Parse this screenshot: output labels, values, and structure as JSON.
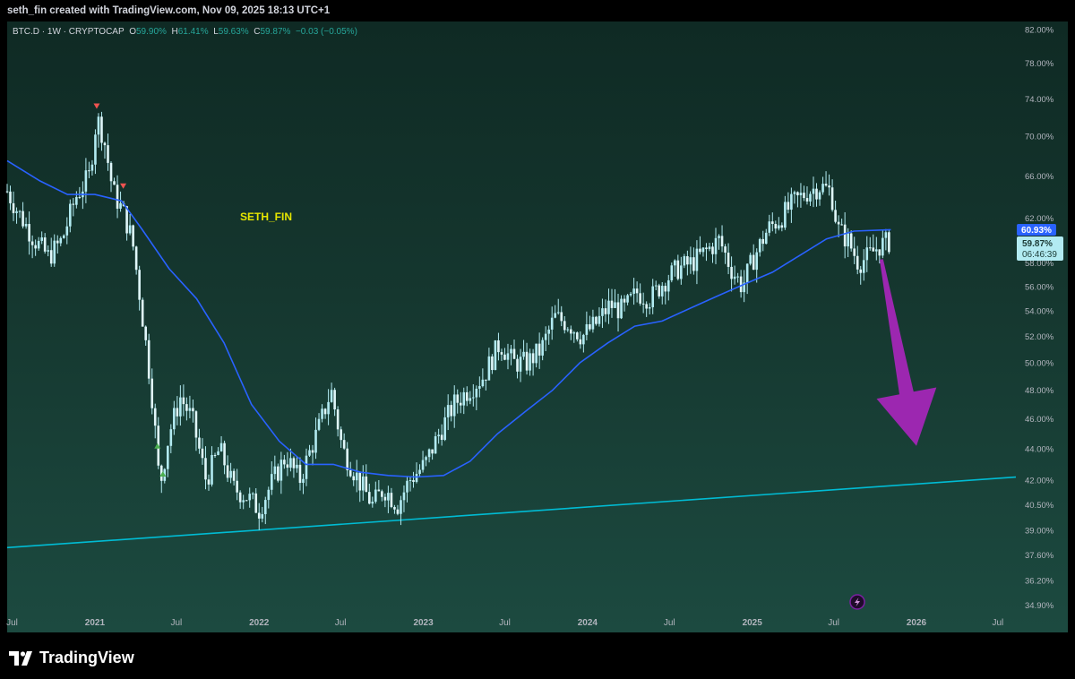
{
  "header": {
    "credit": "seth_fin created with TradingView.com, Nov 09, 2025 18:13 UTC+1"
  },
  "symbol": {
    "name": "BTC.D · 1W · CRYPTOCAP",
    "o_label": "O",
    "o": "59.90%",
    "h_label": "H",
    "h": "61.41%",
    "l_label": "L",
    "l": "59.63%",
    "c_label": "C",
    "c": "59.87%",
    "change": "−0.03 (−0.05%)"
  },
  "watermark": "SETH_FIN",
  "price_tags": {
    "ma": "60.93%",
    "last": "59.87%",
    "countdown": "06:46:39"
  },
  "footer": {
    "brand": "TradingView"
  },
  "colors": {
    "candle": "#b2ebf2",
    "ma_line": "#2962ff",
    "trendline": "#00bcd4",
    "arrow": "#9c27b0",
    "marker_down": "#ef5350",
    "marker_up": "#4caf50",
    "watermark": "#e6e600"
  },
  "chart_data": {
    "type": "candlestick",
    "title": "",
    "scale": "log",
    "ylim": [
      34.5,
      83.0
    ],
    "y_ticks": [
      {
        "v": 82.0,
        "label": "82.00%"
      },
      {
        "v": 78.0,
        "label": "78.00%"
      },
      {
        "v": 74.0,
        "label": "74.00%"
      },
      {
        "v": 70.0,
        "label": "70.00%"
      },
      {
        "v": 66.0,
        "label": "66.00%"
      },
      {
        "v": 62.0,
        "label": "62.00%"
      },
      {
        "v": 58.0,
        "label": "58.00%"
      },
      {
        "v": 56.0,
        "label": "56.00%"
      },
      {
        "v": 54.0,
        "label": "54.00%"
      },
      {
        "v": 52.0,
        "label": "52.00%"
      },
      {
        "v": 50.0,
        "label": "50.00%"
      },
      {
        "v": 48.0,
        "label": "48.00%"
      },
      {
        "v": 46.0,
        "label": "46.00%"
      },
      {
        "v": 44.0,
        "label": "44.00%"
      },
      {
        "v": 42.0,
        "label": "42.00%"
      },
      {
        "v": 40.5,
        "label": "40.50%"
      },
      {
        "v": 39.0,
        "label": "39.00%"
      },
      {
        "v": 37.6,
        "label": "37.60%"
      },
      {
        "v": 36.2,
        "label": "36.20%"
      },
      {
        "v": 34.9,
        "label": "34.90%"
      }
    ],
    "x_range": [
      "2020-06-20",
      "2026-08-10"
    ],
    "x_ticks": [
      {
        "date": "2020-07-01",
        "label": "Jul",
        "bold": false
      },
      {
        "date": "2021-01-01",
        "label": "2021",
        "bold": true
      },
      {
        "date": "2021-07-01",
        "label": "Jul",
        "bold": false
      },
      {
        "date": "2022-01-01",
        "label": "2022",
        "bold": true
      },
      {
        "date": "2022-07-01",
        "label": "Jul",
        "bold": false
      },
      {
        "date": "2023-01-01",
        "label": "2023",
        "bold": true
      },
      {
        "date": "2023-07-01",
        "label": "Jul",
        "bold": false
      },
      {
        "date": "2024-01-01",
        "label": "2024",
        "bold": true
      },
      {
        "date": "2024-07-01",
        "label": "Jul",
        "bold": false
      },
      {
        "date": "2025-01-01",
        "label": "2025",
        "bold": true
      },
      {
        "date": "2025-07-01",
        "label": "Jul",
        "bold": false
      },
      {
        "date": "2026-01-01",
        "label": "2026",
        "bold": true
      },
      {
        "date": "2026-07-01",
        "label": "Jul",
        "bold": false
      }
    ],
    "price_path": [
      [
        "2020-06-20",
        64.5
      ],
      [
        "2020-07-15",
        62.5
      ],
      [
        "2020-08-20",
        60.0
      ],
      [
        "2020-09-20",
        58.5
      ],
      [
        "2020-10-20",
        60.0
      ],
      [
        "2020-11-20",
        64.0
      ],
      [
        "2020-12-20",
        66.0
      ],
      [
        "2021-01-05",
        72.0
      ],
      [
        "2021-01-20",
        70.0
      ],
      [
        "2021-02-10",
        64.5
      ],
      [
        "2021-03-05",
        62.5
      ],
      [
        "2021-03-25",
        60.0
      ],
      [
        "2021-04-15",
        54.0
      ],
      [
        "2021-05-10",
        47.0
      ],
      [
        "2021-05-25",
        41.5
      ],
      [
        "2021-06-15",
        45.0
      ],
      [
        "2021-07-10",
        47.5
      ],
      [
        "2021-08-05",
        46.0
      ],
      [
        "2021-09-05",
        42.0
      ],
      [
        "2021-10-05",
        44.0
      ],
      [
        "2021-11-05",
        41.5
      ],
      [
        "2021-12-05",
        41.0
      ],
      [
        "2022-01-01",
        40.2
      ],
      [
        "2022-02-01",
        42.0
      ],
      [
        "2022-03-01",
        43.5
      ],
      [
        "2022-04-01",
        42.0
      ],
      [
        "2022-05-15",
        45.5
      ],
      [
        "2022-06-10",
        48.0
      ],
      [
        "2022-07-05",
        44.0
      ],
      [
        "2022-08-10",
        42.0
      ],
      [
        "2022-09-10",
        40.5
      ],
      [
        "2022-10-05",
        41.5
      ],
      [
        "2022-11-05",
        40.5
      ],
      [
        "2022-12-01",
        42.0
      ],
      [
        "2023-01-05",
        43.0
      ],
      [
        "2023-02-05",
        45.0
      ],
      [
        "2023-03-10",
        47.0
      ],
      [
        "2023-04-10",
        48.0
      ],
      [
        "2023-05-15",
        49.0
      ],
      [
        "2023-06-20",
        51.5
      ],
      [
        "2023-07-20",
        50.0
      ],
      [
        "2023-08-20",
        50.0
      ],
      [
        "2023-09-20",
        51.0
      ],
      [
        "2023-10-20",
        53.5
      ],
      [
        "2023-11-20",
        53.0
      ],
      [
        "2023-12-20",
        52.0
      ],
      [
        "2024-01-20",
        53.0
      ],
      [
        "2024-02-20",
        54.5
      ],
      [
        "2024-03-20",
        54.0
      ],
      [
        "2024-04-20",
        55.5
      ],
      [
        "2024-05-20",
        55.0
      ],
      [
        "2024-06-20",
        56.5
      ],
      [
        "2024-07-20",
        57.5
      ],
      [
        "2024-08-20",
        58.0
      ],
      [
        "2024-09-20",
        59.0
      ],
      [
        "2024-10-20",
        60.0
      ],
      [
        "2024-11-15",
        57.5
      ],
      [
        "2024-12-10",
        56.0
      ],
      [
        "2025-01-05",
        58.5
      ],
      [
        "2025-02-05",
        61.0
      ],
      [
        "2025-03-05",
        62.0
      ],
      [
        "2025-04-05",
        63.5
      ],
      [
        "2025-05-05",
        64.5
      ],
      [
        "2025-06-01",
        65.0
      ],
      [
        "2025-06-25",
        64.5
      ],
      [
        "2025-07-10",
        61.0
      ],
      [
        "2025-08-01",
        60.0
      ],
      [
        "2025-08-25",
        58.0
      ],
      [
        "2025-09-15",
        58.5
      ],
      [
        "2025-10-10",
        59.5
      ],
      [
        "2025-11-05",
        59.9
      ]
    ],
    "ma_series": [
      [
        "2020-06-20",
        67.5
      ],
      [
        "2020-09-01",
        65.5
      ],
      [
        "2020-11-01",
        64.2
      ],
      [
        "2021-01-01",
        64.2
      ],
      [
        "2021-03-01",
        63.6
      ],
      [
        "2021-04-15",
        61.0
      ],
      [
        "2021-06-15",
        57.5
      ],
      [
        "2021-08-15",
        55.0
      ],
      [
        "2021-10-15",
        51.5
      ],
      [
        "2021-12-15",
        47.0
      ],
      [
        "2022-02-15",
        44.5
      ],
      [
        "2022-04-15",
        43.0
      ],
      [
        "2022-06-15",
        43.0
      ],
      [
        "2022-08-15",
        42.5
      ],
      [
        "2022-10-15",
        42.3
      ],
      [
        "2022-12-15",
        42.2
      ],
      [
        "2023-02-15",
        42.3
      ],
      [
        "2023-04-15",
        43.2
      ],
      [
        "2023-06-15",
        45.0
      ],
      [
        "2023-08-15",
        46.5
      ],
      [
        "2023-10-15",
        48.0
      ],
      [
        "2023-12-15",
        50.0
      ],
      [
        "2024-02-15",
        51.5
      ],
      [
        "2024-04-15",
        52.8
      ],
      [
        "2024-06-15",
        53.2
      ],
      [
        "2024-08-15",
        54.2
      ],
      [
        "2024-10-15",
        55.2
      ],
      [
        "2024-12-15",
        56.2
      ],
      [
        "2025-02-15",
        57.2
      ],
      [
        "2025-04-15",
        58.6
      ],
      [
        "2025-06-15",
        60.1
      ],
      [
        "2025-08-15",
        60.8
      ],
      [
        "2025-11-05",
        60.93
      ]
    ],
    "trendline": [
      [
        "2020-06-20",
        38.0
      ],
      [
        "2026-08-10",
        42.2
      ]
    ],
    "markers": [
      {
        "date": "2021-01-05",
        "price": 73.2,
        "kind": "down"
      },
      {
        "date": "2021-03-05",
        "price": 65.0,
        "kind": "down"
      },
      {
        "date": "2021-05-20",
        "price": 44.2,
        "kind": "up"
      },
      {
        "date": "2021-06-01",
        "price": 42.4,
        "kind": "up"
      }
    ],
    "arrow": {
      "from": [
        "2025-10-15",
        58.3
      ],
      "to": [
        "2026-01-01",
        44.2
      ]
    }
  }
}
